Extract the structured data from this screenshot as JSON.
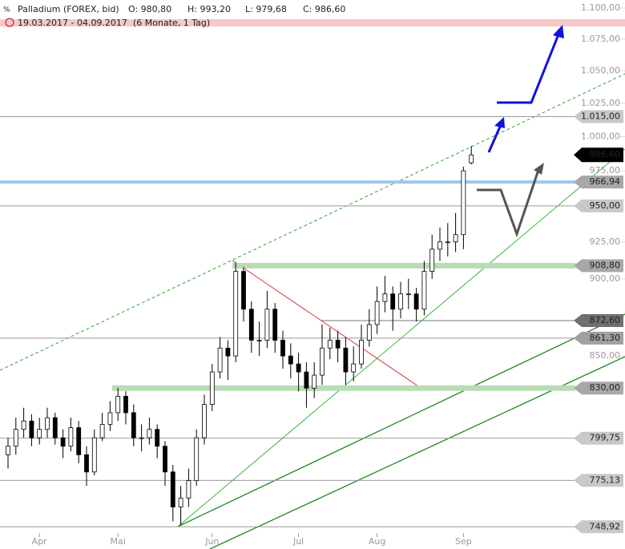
{
  "chart_data": {
    "type": "candlestick",
    "title": "Palladium (FOREX, bid)",
    "ohlc_labels": [
      "O: 980,80",
      "H: 993,20",
      "L: 979,68",
      "C: 986,60"
    ],
    "period": "19.03.2017 - 04.09.2017",
    "period_note": "(6 Monate, 1 Tag)",
    "categories": [
      null,
      null,
      null,
      null,
      "Apr",
      null,
      null,
      null,
      null,
      null,
      null,
      null,
      null,
      null,
      "Mai",
      null,
      null,
      null,
      null,
      null,
      null,
      null,
      null,
      null,
      null,
      null,
      "Jun",
      null,
      null,
      null,
      null,
      null,
      null,
      null,
      null,
      null,
      null,
      "Jul",
      null,
      null,
      null,
      null,
      null,
      null,
      null,
      null,
      null,
      "Aug",
      null,
      null,
      null,
      null,
      null,
      null,
      null,
      null,
      null,
      null,
      "Sep",
      null
    ],
    "open": [
      790,
      795,
      805,
      810,
      800,
      805,
      812,
      800,
      795,
      806,
      790,
      780,
      800,
      808,
      815,
      825,
      815,
      800,
      800,
      805,
      795,
      780,
      760,
      765,
      775,
      800,
      820,
      840,
      855,
      850,
      905,
      880,
      860,
      860,
      880,
      860,
      850,
      845,
      840,
      830,
      838,
      855,
      860,
      855,
      840,
      845,
      860,
      870,
      885,
      890,
      880,
      890,
      890,
      880,
      905,
      920,
      925,
      925,
      930,
      980.8
    ],
    "high": [
      800,
      812,
      818,
      814,
      812,
      818,
      815,
      805,
      812,
      810,
      795,
      805,
      815,
      822,
      830,
      828,
      820,
      808,
      812,
      808,
      798,
      784,
      772,
      782,
      805,
      826,
      845,
      862,
      860,
      911,
      908,
      885,
      872,
      892,
      884,
      866,
      858,
      852,
      846,
      846,
      870,
      868,
      866,
      862,
      856,
      870,
      880,
      895,
      902,
      895,
      898,
      900,
      894,
      912,
      930,
      935,
      938,
      945,
      978,
      993.2
    ],
    "low": [
      782,
      790,
      800,
      795,
      796,
      800,
      796,
      788,
      792,
      785,
      772,
      778,
      798,
      804,
      810,
      808,
      795,
      792,
      796,
      788,
      772,
      752,
      750,
      760,
      772,
      796,
      816,
      836,
      835,
      846,
      872,
      852,
      850,
      855,
      852,
      842,
      836,
      828,
      818,
      824,
      832,
      848,
      846,
      832,
      834,
      842,
      856,
      864,
      878,
      866,
      874,
      880,
      872,
      876,
      900,
      912,
      915,
      918,
      920,
      979.68
    ],
    "close": [
      795,
      805,
      810,
      800,
      805,
      812,
      800,
      795,
      806,
      790,
      780,
      800,
      808,
      815,
      825,
      815,
      800,
      800,
      805,
      795,
      780,
      760,
      765,
      775,
      800,
      820,
      840,
      855,
      850,
      905,
      880,
      860,
      860,
      880,
      860,
      850,
      845,
      840,
      830,
      838,
      855,
      860,
      855,
      840,
      845,
      860,
      870,
      885,
      890,
      880,
      890,
      890,
      880,
      905,
      920,
      925,
      925,
      930,
      975,
      986.6
    ],
    "up_color": "#ffffff",
    "down_color": "#000000",
    "ylog": true,
    "ylim": [
      736.7,
      1106.6
    ],
    "yticks": [
      {
        "value": 1100,
        "label": "1.100,00"
      },
      {
        "value": 1075,
        "label": "1.075,00"
      },
      {
        "value": 1050,
        "label": "1.050,00"
      },
      {
        "value": 1025,
        "label": "1.025,00"
      },
      {
        "value": 1000,
        "label": "1.000,00"
      },
      {
        "value": 975,
        "label": "975,00"
      },
      {
        "value": 925,
        "label": "925,00"
      },
      {
        "value": 900,
        "label": "900,00"
      },
      {
        "value": 850,
        "label": "850,00"
      }
    ],
    "levels": [
      {
        "value": 1015,
        "label": "1.015,00",
        "color": "#999999",
        "box": "#c8c8c8"
      },
      {
        "value": 966.94,
        "label": "966,94",
        "color": "#9cc8ee",
        "box": "#a8a8a8"
      },
      {
        "value": 950,
        "label": "950,00",
        "color": "#999999",
        "box": "#c8c8c8"
      },
      {
        "value": 908.8,
        "label": "908,80",
        "color": "#b9dcb4",
        "box": "#a8a8a8"
      },
      {
        "value": 872.6,
        "label": "872,60",
        "color": "#777777",
        "box": "#707070"
      },
      {
        "value": 861.3,
        "label": "861,30",
        "color": "#999999",
        "box": "#a0a0a0"
      },
      {
        "value": 830,
        "label": "830,00",
        "color": "#b9dcb4",
        "box": "#a8a8a8"
      },
      {
        "value": 799.75,
        "label": "799,75",
        "color": "#999999",
        "box": "#c8c8c8"
      },
      {
        "value": 775.13,
        "label": "775,13",
        "color": "#999999",
        "box": "#c8c8c8"
      },
      {
        "value": 748.92,
        "label": "748,92",
        "color": "#999999",
        "box": "#c8c8c8"
      }
    ],
    "last": {
      "value": 986.6,
      "label": "986,60"
    }
  }
}
